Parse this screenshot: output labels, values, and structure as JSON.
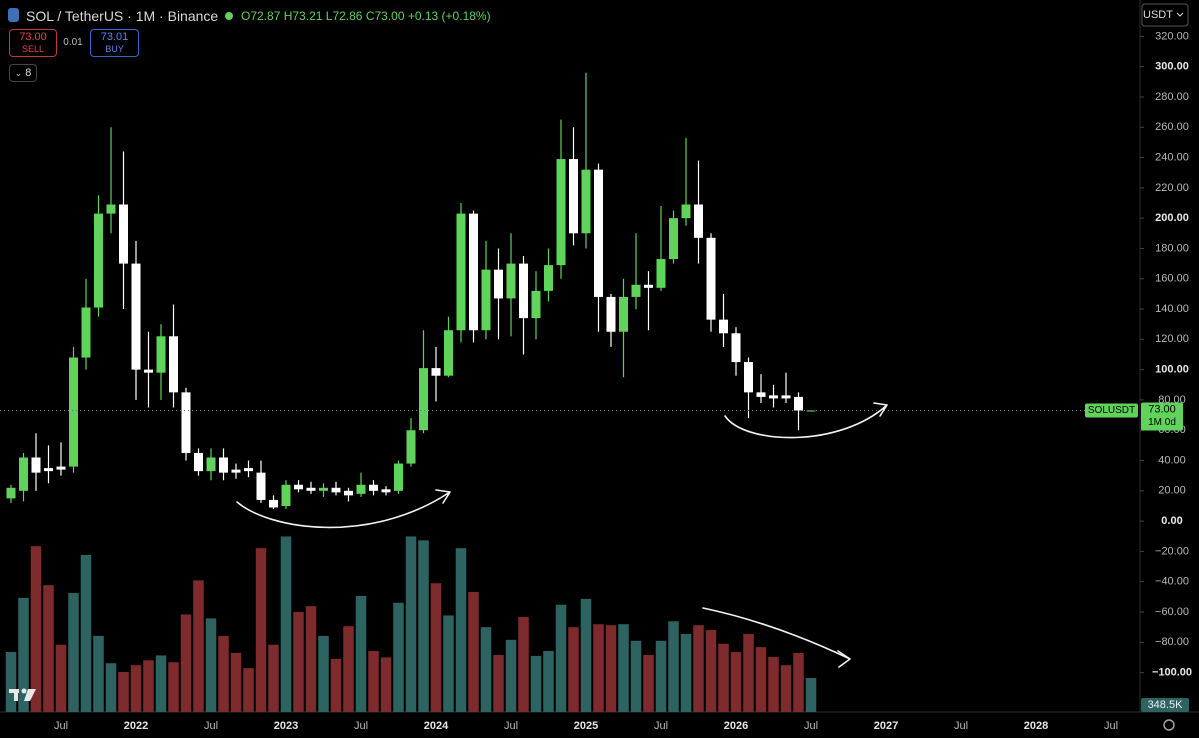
{
  "chart_data": {
    "type": "candlestick",
    "title": "SOL / TetherUS · 1M · Binance",
    "legend": {
      "open": "O72.87",
      "high": "H73.21",
      "low": "L72.86",
      "close": "C73.00",
      "change": "+0.13 (+0.18%)"
    },
    "order_panel": {
      "sell_price": "73.00",
      "sell": "SELL",
      "spread": "0.01",
      "buy_price": "73.01",
      "buy": "BUY"
    },
    "indicator_count": "8",
    "currency": "USDT",
    "symbol_tag": "SOLUSDT",
    "countdown": "1M 0d",
    "colors": {
      "up": "#5fd35a",
      "down": "#ffffff",
      "volume_up": "#2d6462",
      "volume_down": "#7d2b2d"
    },
    "categories": [
      null,
      null,
      null,
      null,
      "Jul",
      null,
      null,
      null,
      null,
      null,
      "2022",
      null,
      null,
      null,
      null,
      null,
      "Jul",
      null,
      null,
      null,
      null,
      null,
      "2023",
      null,
      null,
      null,
      null,
      null,
      "Jul",
      null,
      null,
      null,
      null,
      null,
      "2024",
      null,
      null,
      null,
      null,
      null,
      "Jul",
      null,
      null,
      null,
      null,
      null,
      "2025",
      null,
      null,
      null,
      null,
      null,
      "Jul",
      null,
      null,
      null,
      null,
      null,
      "2026",
      null,
      null,
      null,
      null,
      null,
      "Jul",
      null,
      null,
      null,
      null,
      null,
      "2027",
      null,
      null,
      null,
      null,
      null,
      "Jul",
      null,
      null,
      null,
      null,
      null,
      "2028",
      null,
      null,
      null,
      null,
      null,
      "Jul",
      null,
      null
    ],
    "open": [
      15,
      20,
      42,
      35,
      36,
      36,
      108,
      141,
      203,
      209,
      170,
      100,
      98,
      122,
      85,
      45,
      33,
      42,
      34,
      35,
      32,
      14,
      10,
      24,
      22,
      20,
      22,
      20,
      18,
      24,
      21,
      20,
      38,
      60,
      101,
      96,
      126,
      203,
      126,
      166,
      147,
      170,
      134,
      152,
      169,
      239,
      190,
      232,
      148,
      125,
      148,
      156,
      154,
      173,
      200,
      209,
      187,
      133,
      124,
      105,
      85,
      83,
      83,
      82,
      72.87,
      null,
      null,
      null,
      null,
      null,
      null,
      null,
      null,
      null,
      null,
      null,
      null,
      null,
      null,
      null,
      null,
      null,
      null,
      null,
      null,
      null,
      null,
      null,
      null,
      null,
      null
    ],
    "high": [
      24,
      45,
      58,
      50,
      52,
      115,
      160,
      215,
      260,
      244,
      185,
      125,
      130,
      143,
      88,
      48,
      48,
      48,
      38,
      40,
      40,
      17,
      27,
      27,
      26,
      25,
      26,
      22,
      32,
      27,
      23,
      40,
      68,
      126,
      115,
      135,
      210,
      205,
      185,
      180,
      190,
      175,
      165,
      180,
      265,
      260,
      296,
      236,
      150,
      160,
      190,
      165,
      208,
      205,
      253,
      238,
      190,
      150,
      128,
      108,
      97,
      90,
      98,
      85,
      73.21,
      null,
      null,
      null,
      null,
      null,
      null,
      null,
      null,
      null,
      null,
      null,
      null,
      null,
      null,
      null,
      null,
      null,
      null,
      null,
      null,
      null,
      null,
      null,
      null,
      null,
      null
    ],
    "low": [
      12,
      13,
      20,
      25,
      30,
      32,
      100,
      135,
      190,
      140,
      80,
      75,
      80,
      75,
      40,
      30,
      27,
      27,
      28,
      29,
      12,
      8,
      8,
      19,
      18,
      16,
      17,
      13,
      16,
      17,
      17,
      18,
      36,
      58,
      79,
      95,
      118,
      118,
      120,
      120,
      122,
      110,
      120,
      145,
      160,
      182,
      180,
      125,
      115,
      95,
      140,
      126,
      152,
      170,
      195,
      170,
      125,
      115,
      96,
      68,
      78,
      75,
      78,
      60,
      72.86,
      null,
      null,
      null,
      null,
      null,
      null,
      null,
      null,
      null,
      null,
      null,
      null,
      null,
      null,
      null,
      null,
      null,
      null,
      null,
      null,
      null,
      null,
      null,
      null,
      null,
      null
    ],
    "close": [
      22,
      42,
      32,
      33,
      34,
      108,
      141,
      203,
      209,
      170,
      100,
      98,
      122,
      85,
      45,
      33,
      42,
      32,
      32,
      33,
      14,
      9,
      24,
      21,
      20,
      22,
      19,
      17,
      24,
      20,
      19,
      38,
      60,
      101,
      96,
      126,
      203,
      126,
      166,
      147,
      170,
      134,
      152,
      169,
      239,
      190,
      232,
      148,
      125,
      148,
      156,
      154,
      173,
      200,
      209,
      187,
      133,
      124,
      105,
      85,
      82,
      81,
      81,
      73,
      73,
      null,
      null,
      null,
      null,
      null,
      null,
      null,
      null,
      null,
      null,
      null,
      null,
      null,
      null,
      null,
      null,
      null,
      null,
      null,
      null,
      null,
      null,
      null,
      null,
      null,
      null
    ],
    "close_labels": [
      null,
      null,
      null,
      null,
      null,
      null,
      null,
      null,
      null,
      null,
      null,
      null,
      null,
      null,
      null,
      null,
      null,
      null,
      null,
      null,
      null,
      null,
      null,
      null,
      null,
      null,
      null,
      null,
      null,
      null,
      null,
      null,
      null,
      null,
      null,
      null,
      null,
      null,
      null,
      null,
      null,
      null,
      null,
      null,
      null,
      null,
      null,
      null,
      null,
      null,
      null,
      null,
      null,
      null,
      null,
      null,
      null,
      null,
      null,
      null,
      null,
      null,
      null,
      null,
      "73.00",
      null,
      null,
      null,
      null,
      null,
      null,
      null,
      null,
      null,
      null,
      null,
      null,
      null,
      null,
      null,
      null,
      null,
      null,
      null,
      null,
      null,
      null,
      null,
      null,
      null,
      null
    ],
    "volume": {
      "values": [
        615,
        1170,
        1700,
        1300,
        690,
        1220,
        1610,
        780,
        500,
        410,
        480,
        530,
        580,
        510,
        1000,
        1350,
        960,
        780,
        605,
        450,
        1680,
        690,
        1800,
        1025,
        1085,
        780,
        545,
        880,
        1190,
        625,
        560,
        1120,
        1800,
        1760,
        1320,
        990,
        1680,
        1230,
        870,
        585,
        740,
        975,
        575,
        625,
        1100,
        870,
        1160,
        900,
        890,
        900,
        730,
        585,
        730,
        930,
        800,
        890,
        840,
        700,
        615,
        800,
        665,
        565,
        480,
        605,
        348.5,
        null,
        null,
        null,
        null,
        null,
        null,
        null,
        null,
        null,
        null,
        null,
        null,
        null,
        null,
        null,
        null,
        null,
        null,
        null,
        null,
        null,
        null,
        null,
        null,
        null,
        null
      ],
      "value_labels": [
        null,
        null,
        null,
        null,
        null,
        null,
        null,
        null,
        null,
        null,
        null,
        null,
        null,
        null,
        null,
        null,
        null,
        null,
        null,
        null,
        null,
        null,
        null,
        null,
        null,
        null,
        null,
        null,
        null,
        null,
        null,
        null,
        null,
        null,
        null,
        null,
        null,
        null,
        null,
        null,
        null,
        null,
        null,
        null,
        null,
        null,
        null,
        null,
        null,
        null,
        null,
        null,
        null,
        null,
        null,
        null,
        null,
        null,
        null,
        null,
        null,
        null,
        null,
        null,
        "348.5K",
        null,
        null,
        null,
        null,
        null,
        null,
        null,
        null,
        null,
        null,
        null,
        null,
        null,
        null,
        null,
        null,
        null,
        null,
        null,
        null,
        null,
        null,
        null,
        null,
        null,
        null
      ],
      "ylim": [
        0,
        7300
      ]
    },
    "ylim": [
      -126,
      344
    ],
    "yticks": [
      {
        "value": 320,
        "label": "320.00"
      },
      {
        "value": 300,
        "label": "300.00"
      },
      {
        "value": 280,
        "label": "280.00"
      },
      {
        "value": 260,
        "label": "260.00"
      },
      {
        "value": 240,
        "label": "240.00"
      },
      {
        "value": 220,
        "label": "220.00"
      },
      {
        "value": 200,
        "label": "200.00"
      },
      {
        "value": 180,
        "label": "180.00"
      },
      {
        "value": 160,
        "label": "160.00"
      },
      {
        "value": 140,
        "label": "140.00"
      },
      {
        "value": 120,
        "label": "120.00"
      },
      {
        "value": 100,
        "label": "100.00"
      },
      {
        "value": 80,
        "label": "80.00"
      },
      {
        "value": 60,
        "label": "60.00"
      },
      {
        "value": 40,
        "label": "40.00"
      },
      {
        "value": 20,
        "label": "20.00"
      },
      {
        "value": 0,
        "label": "0.00"
      },
      {
        "value": -20,
        "label": "−20.00"
      },
      {
        "value": -40,
        "label": "−40.00"
      },
      {
        "value": -60,
        "label": "−60.00"
      },
      {
        "value": -80,
        "label": "−80.00"
      },
      {
        "value": -100,
        "label": "−100.00"
      }
    ],
    "grid": false
  }
}
